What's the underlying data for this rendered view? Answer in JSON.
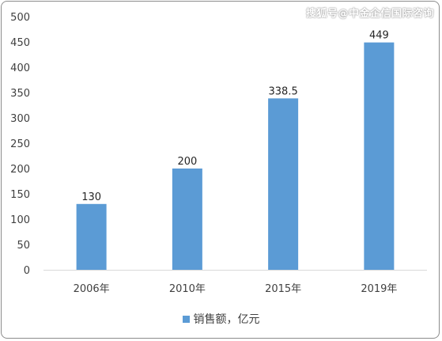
{
  "watermark": "搜狐号@中金企信国际咨询",
  "chart_data": {
    "type": "bar",
    "categories": [
      "2006年",
      "2010年",
      "2015年",
      "2019年"
    ],
    "series": [
      {
        "name": "销售额，亿元",
        "values": [
          130,
          200,
          338.5,
          449
        ]
      }
    ],
    "data_labels": [
      "130",
      "200",
      "338.5",
      "449"
    ],
    "ylim": [
      0,
      500
    ],
    "yticks": [
      0,
      50,
      100,
      150,
      200,
      250,
      300,
      350,
      400,
      450,
      500
    ],
    "grid": false,
    "legend_position": "bottom",
    "bar_color": "#5b9bd5"
  }
}
